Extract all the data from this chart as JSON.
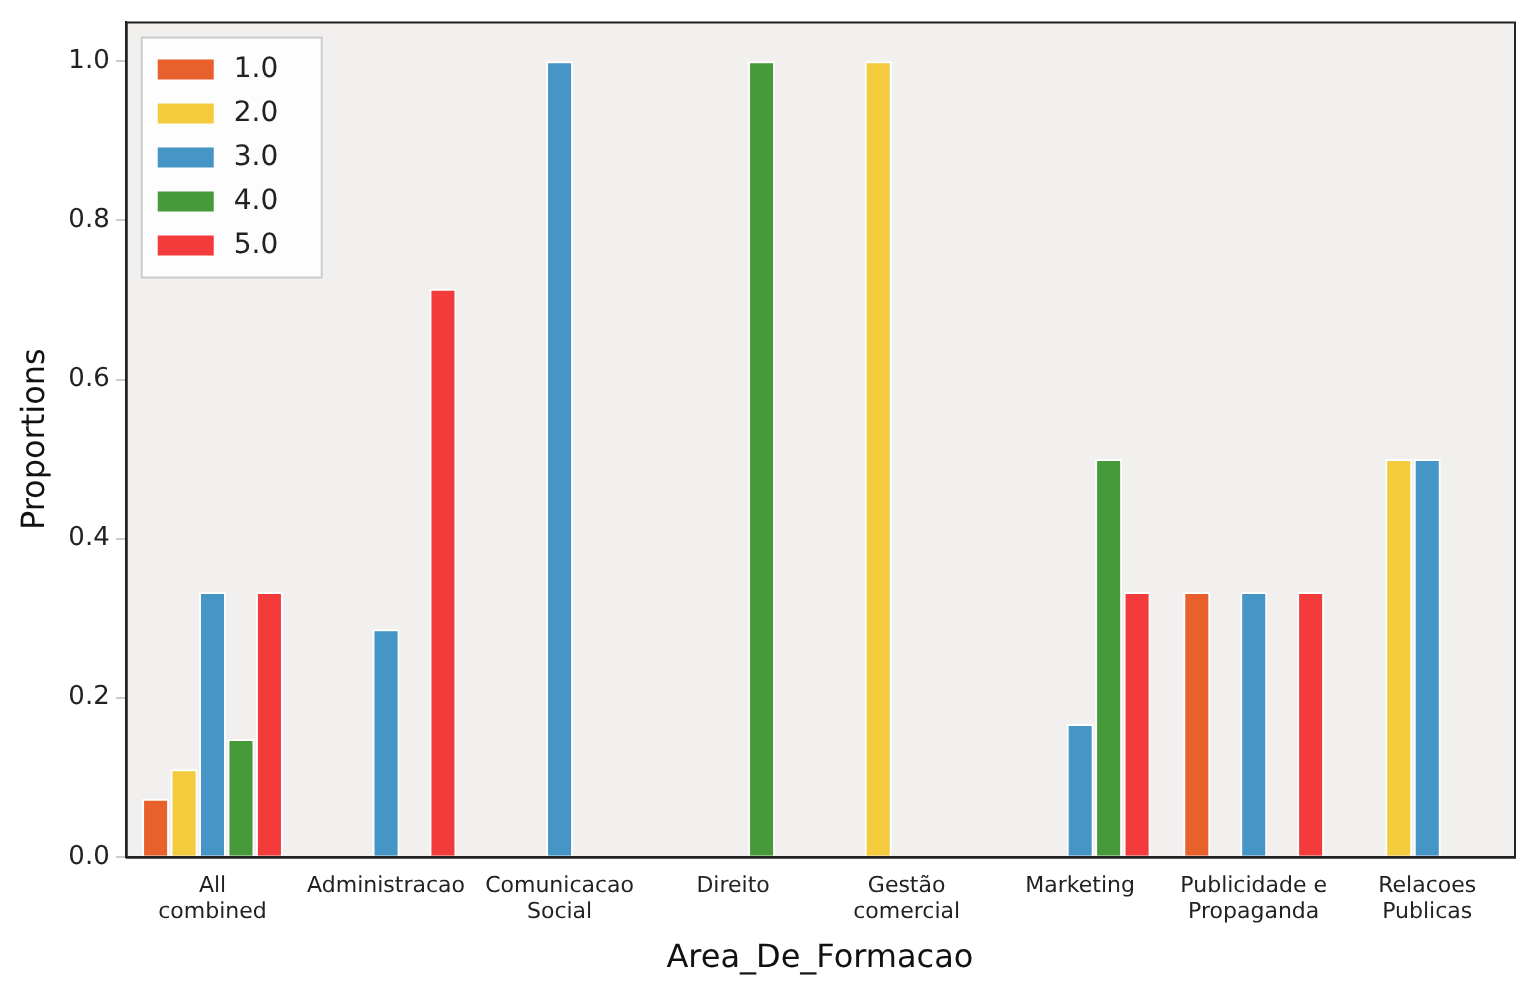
{
  "chart_data": {
    "type": "bar",
    "xlabel": "Area_De_Formacao",
    "ylabel": "Proportions",
    "categories": [
      "All\ncombined",
      "Administracao",
      "Comunicacao\nSocial",
      "Direito",
      "Gestão\ncomercial",
      "Marketing",
      "Publicidade e\nPropaganda",
      "Relacoes\nPublicas"
    ],
    "series": [
      {
        "name": "1.0",
        "color": "#e8602c",
        "values": [
          0.073,
          0,
          0,
          0,
          0,
          0,
          0.333,
          0
        ]
      },
      {
        "name": "2.0",
        "color": "#f4cb3c",
        "values": [
          0.11,
          0,
          0,
          0,
          1.0,
          0,
          0,
          0.5
        ]
      },
      {
        "name": "3.0",
        "color": "#4596c6",
        "values": [
          0.333,
          0.286,
          1.0,
          0,
          0,
          0.167,
          0.333,
          0.5
        ]
      },
      {
        "name": "4.0",
        "color": "#479a3a",
        "values": [
          0.148,
          0,
          0,
          1.0,
          0,
          0.5,
          0,
          0
        ]
      },
      {
        "name": "5.0",
        "color": "#f33b3c",
        "values": [
          0.333,
          0.714,
          0,
          0,
          0,
          0.333,
          0.333,
          0
        ]
      }
    ],
    "ylim": [
      0,
      1.05
    ],
    "yticks": [
      {
        "value": 0,
        "label": "0.0"
      },
      {
        "value": 0.2,
        "label": "0.2"
      },
      {
        "value": 0.4,
        "label": "0.4"
      },
      {
        "value": 0.6,
        "label": "0.6"
      },
      {
        "value": 0.8,
        "label": "0.8"
      },
      {
        "value": 1.0,
        "label": "1.0"
      }
    ],
    "grid": false,
    "legend": "top left"
  }
}
